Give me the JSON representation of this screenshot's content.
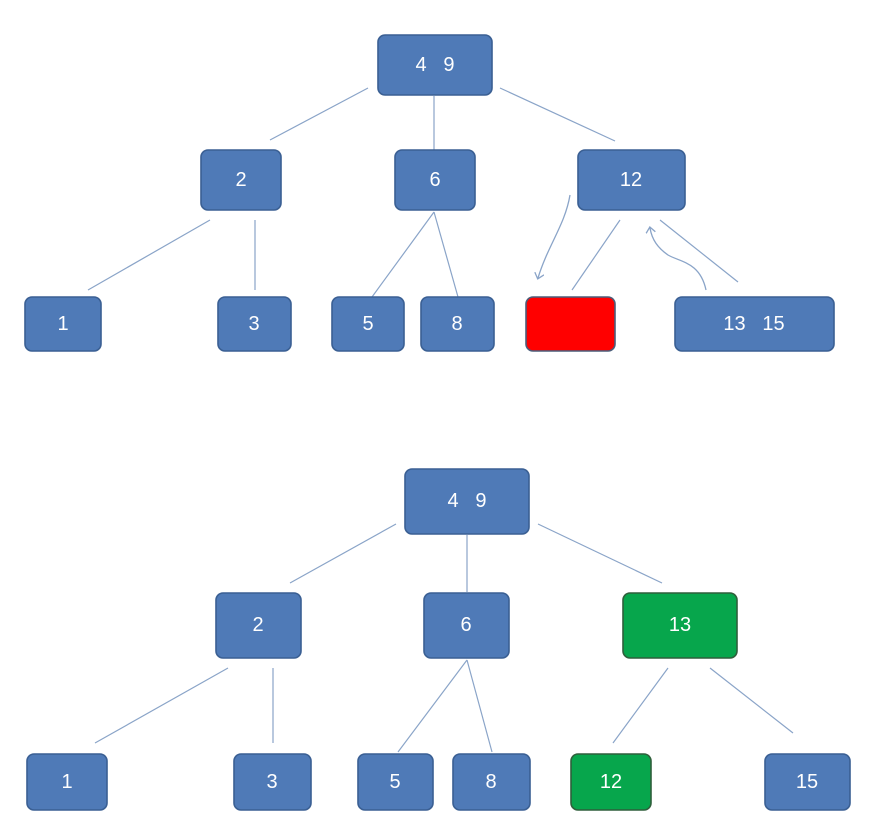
{
  "colors": {
    "node_fill": "#4f7ab7",
    "node_stroke": "#3a5f93",
    "removed_fill": "#ff0000",
    "removed_stroke": "#4a5d7a",
    "moved_fill": "#07a64c",
    "moved_stroke": "#2f5f3b",
    "edge": "#8aa4c8"
  },
  "before_tree": {
    "root": "4   9",
    "level1": [
      "2",
      "6",
      "12"
    ],
    "leaves": [
      "1",
      "3",
      "5",
      "8",
      "",
      "13   15"
    ]
  },
  "after_tree": {
    "root": "4   9",
    "level1": [
      "2",
      "6",
      "13"
    ],
    "leaves": [
      "1",
      "3",
      "5",
      "8",
      "12",
      "15"
    ]
  }
}
